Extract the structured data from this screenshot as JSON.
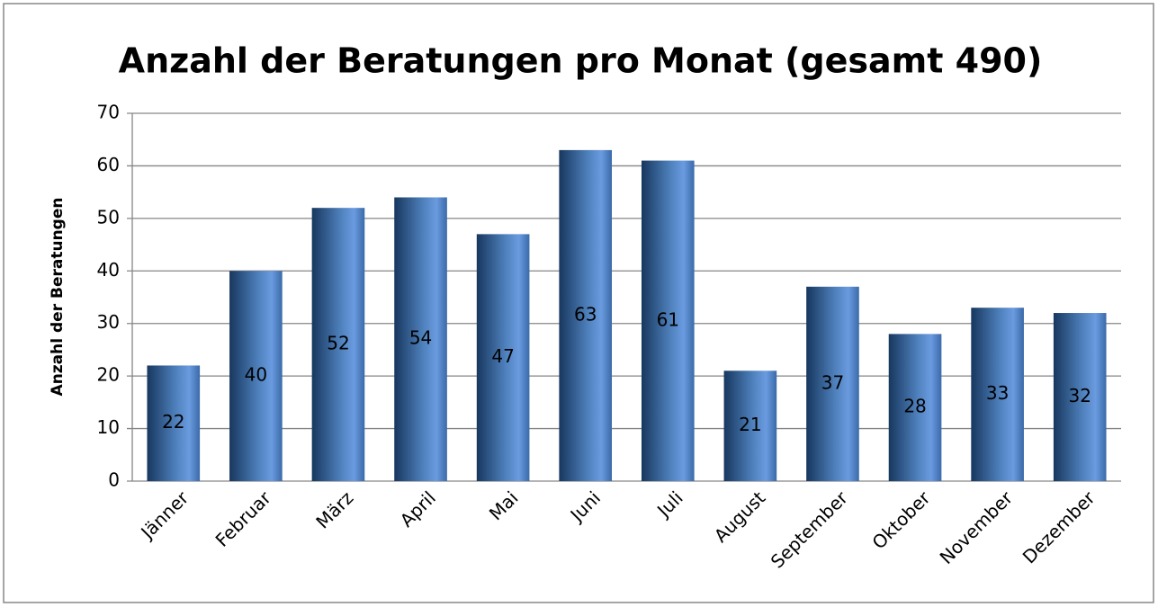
{
  "chart_data": {
    "type": "bar",
    "title": "Anzahl der Beratungen pro Monat (gesamt 490)",
    "y_label": "Anzahl der Beratungen",
    "categories": [
      "Jänner",
      "Februar",
      "März",
      "April",
      "Mai",
      "Juni",
      "Juli",
      "August",
      "September",
      "Oktober",
      "November",
      "Dezember"
    ],
    "values": [
      22,
      40,
      52,
      54,
      47,
      63,
      61,
      21,
      37,
      28,
      33,
      32
    ],
    "color": "#4f81bd",
    "ylim": [
      0,
      70
    ],
    "yticks": [
      0,
      10,
      20,
      30,
      40,
      50,
      60,
      70
    ],
    "grid": true
  }
}
